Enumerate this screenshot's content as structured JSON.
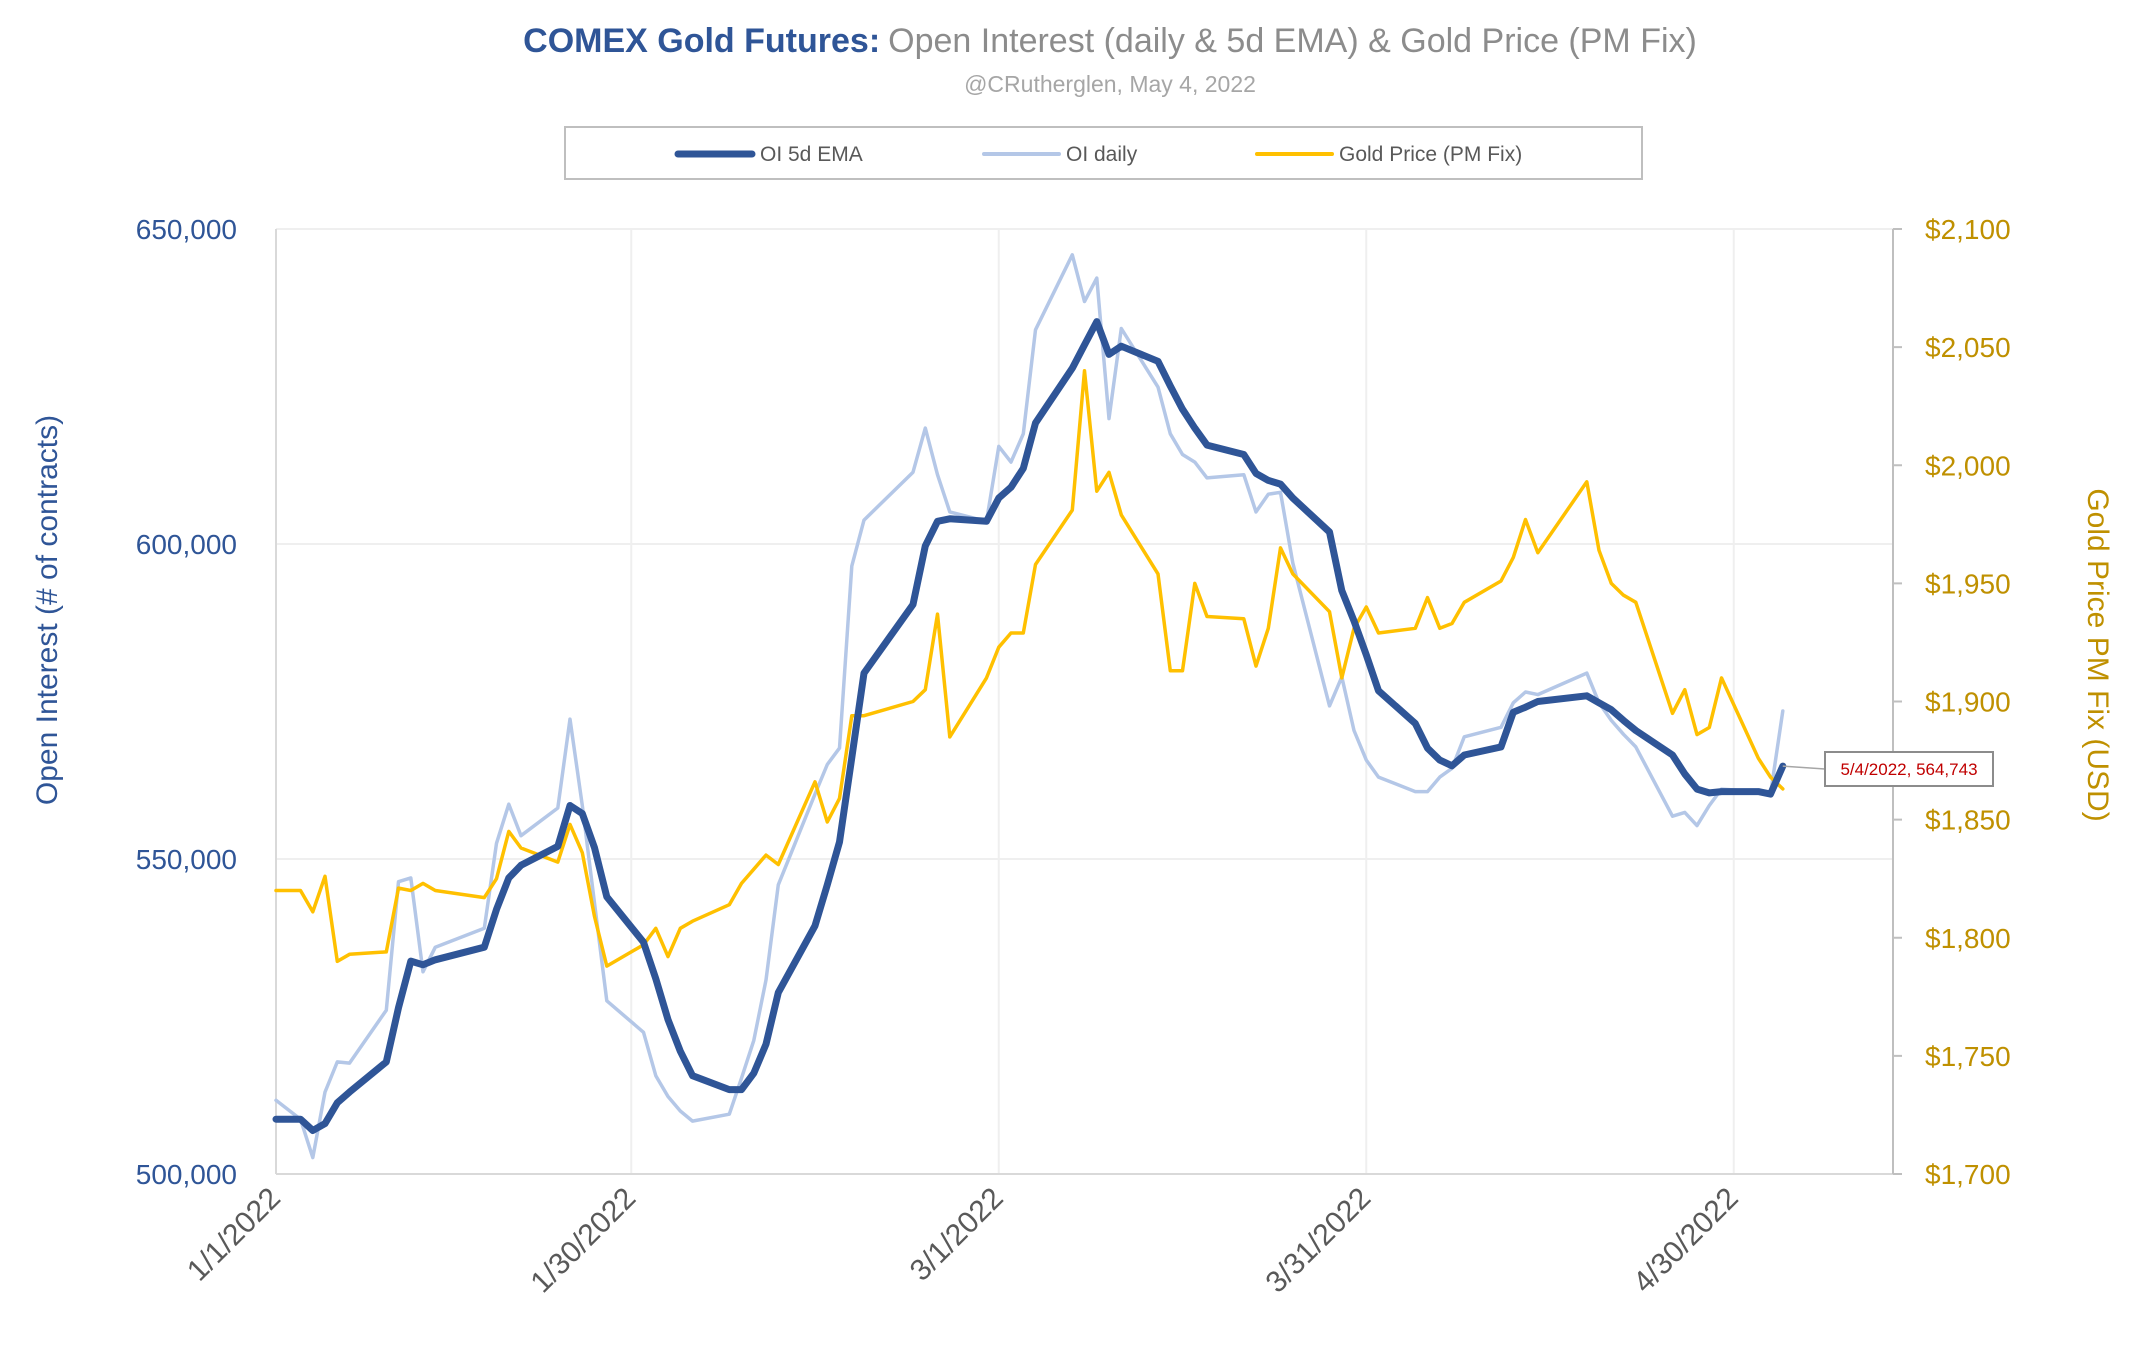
{
  "chart_data": {
    "type": "line",
    "title_bold": "COMEX Gold Futures:",
    "title_rest": "Open Interest (daily & 5d EMA) & Gold Price (PM Fix)",
    "subtitle": "@CRutherglen, May 4, 2022",
    "ylabel_left": "Open Interest (# of contracts)",
    "ylabel_right": "Gold Price PM Fix (USD)",
    "ylim_left": [
      500000,
      650000
    ],
    "ylim_right": [
      1700,
      2100
    ],
    "xlim": [
      "1/1/2022",
      "5/13/2022"
    ],
    "grid": true,
    "legend_placement": "top",
    "x_ticks": [
      "1/1/2022",
      "1/30/2022",
      "3/1/2022",
      "3/31/2022",
      "4/30/2022"
    ],
    "y_ticks_left": [
      "500,000",
      "550,000",
      "600,000",
      "650,000"
    ],
    "y_ticks_right": [
      "$1,700",
      "$1,750",
      "$1,800",
      "$1,850",
      "$1,900",
      "$1,950",
      "$2,000",
      "$2,050",
      "$2,100"
    ],
    "colors": {
      "ema": "#2F5597",
      "daily": "#B4C7E7",
      "gold": "#FFC000",
      "left_axis": "#2F5597",
      "right_axis": "#BF9000",
      "annotation": "#C00000"
    },
    "annotation": {
      "label": "5/4/2022,  564,743",
      "x": "5/4/2022",
      "y": 564743
    },
    "series": [
      {
        "name": "OI 5d EMA",
        "axis": "left",
        "points": [
          [
            "1/1/2022",
            508700
          ],
          [
            "1/3/2022",
            508700
          ],
          [
            "1/4/2022",
            506900
          ],
          [
            "1/5/2022",
            508000
          ],
          [
            "1/6/2022",
            511300
          ],
          [
            "1/7/2022",
            513000
          ],
          [
            "1/10/2022",
            517800
          ],
          [
            "1/11/2022",
            526400
          ],
          [
            "1/12/2022",
            533800
          ],
          [
            "1/13/2022",
            533200
          ],
          [
            "1/14/2022",
            534000
          ],
          [
            "1/18/2022",
            536000
          ],
          [
            "1/19/2022",
            542000
          ],
          [
            "1/20/2022",
            547000
          ],
          [
            "1/21/2022",
            549000
          ],
          [
            "1/24/2022",
            552000
          ],
          [
            "1/25/2022",
            558500
          ],
          [
            "1/26/2022",
            557200
          ],
          [
            "1/27/2022",
            551800
          ],
          [
            "1/28/2022",
            544000
          ],
          [
            "1/31/2022",
            536800
          ],
          [
            "2/1/2022",
            531000
          ],
          [
            "2/2/2022",
            524500
          ],
          [
            "2/3/2022",
            519500
          ],
          [
            "2/4/2022",
            515600
          ],
          [
            "2/7/2022",
            513400
          ],
          [
            "2/8/2022",
            513400
          ],
          [
            "2/9/2022",
            516000
          ],
          [
            "2/10/2022",
            520600
          ],
          [
            "2/11/2022",
            528800
          ],
          [
            "2/14/2022",
            539400
          ],
          [
            "2/15/2022",
            545900
          ],
          [
            "2/16/2022",
            552700
          ],
          [
            "2/17/2022",
            566100
          ],
          [
            "2/18/2022",
            579500
          ],
          [
            "2/22/2022",
            590400
          ],
          [
            "2/23/2022",
            599700
          ],
          [
            "2/24/2022",
            603600
          ],
          [
            "2/25/2022",
            604000
          ],
          [
            "2/28/2022",
            603600
          ],
          [
            "3/1/2022",
            607300
          ],
          [
            "3/2/2022",
            609000
          ],
          [
            "3/3/2022",
            612000
          ],
          [
            "3/4/2022",
            619200
          ],
          [
            "3/7/2022",
            627900
          ],
          [
            "3/8/2022",
            631600
          ],
          [
            "3/9/2022",
            635300
          ],
          [
            "3/10/2022",
            630100
          ],
          [
            "3/11/2022",
            631400
          ],
          [
            "3/14/2022",
            629000
          ],
          [
            "3/15/2022",
            625100
          ],
          [
            "3/16/2022",
            621400
          ],
          [
            "3/17/2022",
            618400
          ],
          [
            "3/18/2022",
            615700
          ],
          [
            "3/21/2022",
            614200
          ],
          [
            "3/22/2022",
            611200
          ],
          [
            "3/23/2022",
            610100
          ],
          [
            "3/24/2022",
            609500
          ],
          [
            "3/25/2022",
            607300
          ],
          [
            "3/28/2022",
            601900
          ],
          [
            "3/29/2022",
            592600
          ],
          [
            "3/30/2022",
            587800
          ],
          [
            "3/31/2022",
            582400
          ],
          [
            "4/1/2022",
            576700
          ],
          [
            "4/4/2022",
            571500
          ],
          [
            "4/5/2022",
            567600
          ],
          [
            "4/6/2022",
            565700
          ],
          [
            "4/7/2022",
            564800
          ],
          [
            "4/8/2022",
            566500
          ],
          [
            "4/11/2022",
            567800
          ],
          [
            "4/12/2022",
            573300
          ],
          [
            "4/13/2022",
            574100
          ],
          [
            "4/14/2022",
            575000
          ],
          [
            "4/18/2022",
            575900
          ],
          [
            "4/19/2022",
            574800
          ],
          [
            "4/20/2022",
            573700
          ],
          [
            "4/21/2022",
            572000
          ],
          [
            "4/22/2022",
            570400
          ],
          [
            "4/25/2022",
            566500
          ],
          [
            "4/26/2022",
            563500
          ],
          [
            "4/27/2022",
            561100
          ],
          [
            "4/28/2022",
            560500
          ],
          [
            "4/29/2022",
            560700
          ],
          [
            "5/2/2022",
            560700
          ],
          [
            "5/3/2022",
            560300
          ],
          [
            "5/4/2022",
            564743
          ]
        ]
      },
      {
        "name": "OI daily",
        "axis": "left",
        "points": [
          [
            "1/1/2022",
            511700
          ],
          [
            "1/3/2022",
            508700
          ],
          [
            "1/4/2022",
            502600
          ],
          [
            "1/5/2022",
            513000
          ],
          [
            "1/6/2022",
            517800
          ],
          [
            "1/7/2022",
            517600
          ],
          [
            "1/10/2022",
            526000
          ],
          [
            "1/11/2022",
            546400
          ],
          [
            "1/12/2022",
            547000
          ],
          [
            "1/13/2022",
            532100
          ],
          [
            "1/14/2022",
            536000
          ],
          [
            "1/18/2022",
            539000
          ],
          [
            "1/19/2022",
            552500
          ],
          [
            "1/20/2022",
            558700
          ],
          [
            "1/21/2022",
            553700
          ],
          [
            "1/24/2022",
            558100
          ],
          [
            "1/25/2022",
            572200
          ],
          [
            "1/26/2022",
            558500
          ],
          [
            "1/27/2022",
            543000
          ],
          [
            "1/28/2022",
            527500
          ],
          [
            "1/31/2022",
            522500
          ],
          [
            "2/1/2022",
            515600
          ],
          [
            "2/2/2022",
            512300
          ],
          [
            "2/3/2022",
            510000
          ],
          [
            "2/4/2022",
            508400
          ],
          [
            "2/7/2022",
            509500
          ],
          [
            "2/8/2022",
            515200
          ],
          [
            "2/9/2022",
            521200
          ],
          [
            "2/10/2022",
            530800
          ],
          [
            "2/11/2022",
            545900
          ],
          [
            "2/14/2022",
            560300
          ],
          [
            "2/15/2022",
            565000
          ],
          [
            "2/16/2022",
            567600
          ],
          [
            "2/17/2022",
            596500
          ],
          [
            "2/18/2022",
            603800
          ],
          [
            "2/22/2022",
            611400
          ],
          [
            "2/23/2022",
            618400
          ],
          [
            "2/24/2022",
            611000
          ],
          [
            "2/25/2022",
            605100
          ],
          [
            "2/28/2022",
            603600
          ],
          [
            "3/1/2022",
            615500
          ],
          [
            "3/2/2022",
            613000
          ],
          [
            "3/3/2022",
            617500
          ],
          [
            "3/4/2022",
            634000
          ],
          [
            "3/7/2022",
            645900
          ],
          [
            "3/8/2022",
            638500
          ],
          [
            "3/9/2022",
            642200
          ],
          [
            "3/10/2022",
            619900
          ],
          [
            "3/11/2022",
            634200
          ],
          [
            "3/14/2022",
            624900
          ],
          [
            "3/15/2022",
            617500
          ],
          [
            "3/16/2022",
            614200
          ],
          [
            "3/17/2022",
            613000
          ],
          [
            "3/18/2022",
            610500
          ],
          [
            "3/21/2022",
            611000
          ],
          [
            "3/22/2022",
            605100
          ],
          [
            "3/23/2022",
            607900
          ],
          [
            "3/24/2022",
            608200
          ],
          [
            "3/25/2022",
            597000
          ],
          [
            "3/28/2022",
            574300
          ],
          [
            "3/29/2022",
            578900
          ],
          [
            "3/30/2022",
            570400
          ],
          [
            "3/31/2022",
            565700
          ],
          [
            "4/1/2022",
            563000
          ],
          [
            "4/4/2022",
            560700
          ],
          [
            "4/5/2022",
            560700
          ],
          [
            "4/6/2022",
            563000
          ],
          [
            "4/7/2022",
            564400
          ],
          [
            "4/8/2022",
            569400
          ],
          [
            "4/11/2022",
            570900
          ],
          [
            "4/12/2022",
            574800
          ],
          [
            "4/13/2022",
            576500
          ],
          [
            "4/14/2022",
            576100
          ],
          [
            "4/18/2022",
            579500
          ],
          [
            "4/19/2022",
            574800
          ],
          [
            "4/20/2022",
            572000
          ],
          [
            "4/21/2022",
            569800
          ],
          [
            "4/22/2022",
            567800
          ],
          [
            "4/25/2022",
            556800
          ],
          [
            "4/26/2022",
            557400
          ],
          [
            "4/27/2022",
            555300
          ],
          [
            "4/28/2022",
            558500
          ],
          [
            "4/29/2022",
            561100
          ],
          [
            "5/2/2022",
            560700
          ],
          [
            "5/3/2022",
            560300
          ],
          [
            "5/4/2022",
            573500
          ]
        ]
      },
      {
        "name": "Gold Price (PM Fix)",
        "axis": "right",
        "points": [
          [
            "1/1/2022",
            1820
          ],
          [
            "1/3/2022",
            1820
          ],
          [
            "1/4/2022",
            1811
          ],
          [
            "1/5/2022",
            1826
          ],
          [
            "1/6/2022",
            1790
          ],
          [
            "1/7/2022",
            1793
          ],
          [
            "1/10/2022",
            1794
          ],
          [
            "1/11/2022",
            1821
          ],
          [
            "1/12/2022",
            1820
          ],
          [
            "1/13/2022",
            1823
          ],
          [
            "1/14/2022",
            1820
          ],
          [
            "1/18/2022",
            1817
          ],
          [
            "1/19/2022",
            1825
          ],
          [
            "1/20/2022",
            1845
          ],
          [
            "1/21/2022",
            1838
          ],
          [
            "1/24/2022",
            1832
          ],
          [
            "1/25/2022",
            1848
          ],
          [
            "1/26/2022",
            1836
          ],
          [
            "1/27/2022",
            1809
          ],
          [
            "1/28/2022",
            1788
          ],
          [
            "1/31/2022",
            1797
          ],
          [
            "2/1/2022",
            1804
          ],
          [
            "2/2/2022",
            1792
          ],
          [
            "2/3/2022",
            1804
          ],
          [
            "2/4/2022",
            1807
          ],
          [
            "2/7/2022",
            1814
          ],
          [
            "2/8/2022",
            1823
          ],
          [
            "2/9/2022",
            1829
          ],
          [
            "2/10/2022",
            1835
          ],
          [
            "2/11/2022",
            1831
          ],
          [
            "2/14/2022",
            1866
          ],
          [
            "2/15/2022",
            1849
          ],
          [
            "2/16/2022",
            1859
          ],
          [
            "2/17/2022",
            1894
          ],
          [
            "2/18/2022",
            1894
          ],
          [
            "2/22/2022",
            1900
          ],
          [
            "2/23/2022",
            1905
          ],
          [
            "2/24/2022",
            1937
          ],
          [
            "2/25/2022",
            1885
          ],
          [
            "2/28/2022",
            1910
          ],
          [
            "3/1/2022",
            1923
          ],
          [
            "3/2/2022",
            1929
          ],
          [
            "3/3/2022",
            1929
          ],
          [
            "3/4/2022",
            1958
          ],
          [
            "3/7/2022",
            1981
          ],
          [
            "3/8/2022",
            2040
          ],
          [
            "3/9/2022",
            1989
          ],
          [
            "3/10/2022",
            1997
          ],
          [
            "3/11/2022",
            1979
          ],
          [
            "3/14/2022",
            1954
          ],
          [
            "3/15/2022",
            1913
          ],
          [
            "3/16/2022",
            1913
          ],
          [
            "3/17/2022",
            1950
          ],
          [
            "3/18/2022",
            1936
          ],
          [
            "3/21/2022",
            1935
          ],
          [
            "3/22/2022",
            1915
          ],
          [
            "3/23/2022",
            1931
          ],
          [
            "3/24/2022",
            1965
          ],
          [
            "3/25/2022",
            1954
          ],
          [
            "3/28/2022",
            1938
          ],
          [
            "3/29/2022",
            1910
          ],
          [
            "3/30/2022",
            1931
          ],
          [
            "3/31/2022",
            1940
          ],
          [
            "4/1/2022",
            1929
          ],
          [
            "4/4/2022",
            1931
          ],
          [
            "4/5/2022",
            1944
          ],
          [
            "4/6/2022",
            1931
          ],
          [
            "4/7/2022",
            1933
          ],
          [
            "4/8/2022",
            1942
          ],
          [
            "4/11/2022",
            1951
          ],
          [
            "4/12/2022",
            1961
          ],
          [
            "4/13/2022",
            1977
          ],
          [
            "4/14/2022",
            1963
          ],
          [
            "4/18/2022",
            1993
          ],
          [
            "4/19/2022",
            1964
          ],
          [
            "4/20/2022",
            1950
          ],
          [
            "4/21/2022",
            1945
          ],
          [
            "4/22/2022",
            1942
          ],
          [
            "4/25/2022",
            1895
          ],
          [
            "4/26/2022",
            1905
          ],
          [
            "4/27/2022",
            1886
          ],
          [
            "4/28/2022",
            1889
          ],
          [
            "4/29/2022",
            1910
          ],
          [
            "5/2/2022",
            1876
          ],
          [
            "5/3/2022",
            1868
          ],
          [
            "5/4/2022",
            1863
          ]
        ]
      }
    ]
  }
}
